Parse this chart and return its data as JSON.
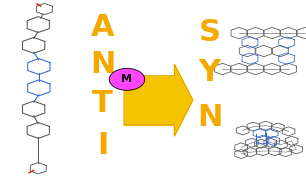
{
  "background_color": "#ffffff",
  "anti_text": [
    "A",
    "N",
    "T",
    "I"
  ],
  "syn_text": [
    "S",
    "Y",
    "N"
  ],
  "text_color": "#F5A800",
  "arrow_face_color": "#F5C400",
  "arrow_edge_color": "#E09000",
  "m_circle_color": "#FF44FF",
  "m_text": "M",
  "font_size_letters": 22,
  "mol_color": "#555555",
  "blue_color": "#3366CC",
  "red_color": "#CC2200",
  "figsize": [
    3.06,
    1.89
  ],
  "dpi": 100
}
